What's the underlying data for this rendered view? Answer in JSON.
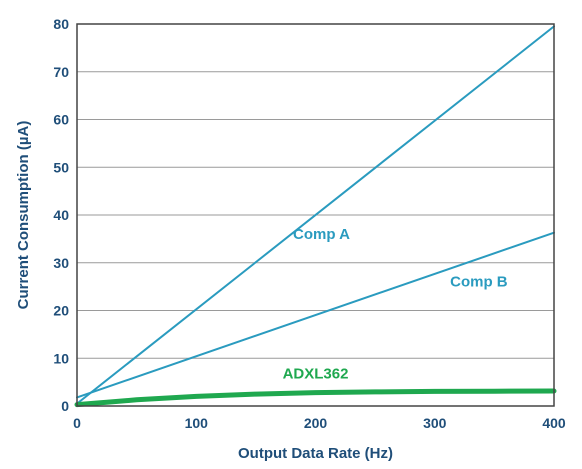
{
  "chart_data": {
    "type": "line",
    "title": "",
    "xlabel": "Output Data Rate (Hz)",
    "ylabel": "Current Consumption (µA)",
    "xlim": [
      0,
      400
    ],
    "ylim": [
      0,
      80
    ],
    "xticks": [
      0,
      100,
      200,
      300,
      400
    ],
    "yticks": [
      0,
      10,
      20,
      30,
      40,
      50,
      60,
      70,
      80
    ],
    "grid": "horizontal",
    "legend": "none",
    "series": [
      {
        "name": "Comp A",
        "color": "#2a9bbf",
        "x": [
          0,
          400
        ],
        "y": [
          0.5,
          79.5
        ],
        "label_at": [
          205,
          35
        ]
      },
      {
        "name": "Comp B",
        "color": "#2a9bbf",
        "x": [
          0,
          400
        ],
        "y": [
          1.8,
          36.3
        ],
        "label_at": [
          337,
          25
        ]
      },
      {
        "name": "ADXL362",
        "color": "#1fa84f",
        "x": [
          0,
          25,
          50,
          100,
          150,
          200,
          250,
          300,
          350,
          400
        ],
        "y": [
          0.3,
          0.8,
          1.3,
          2.0,
          2.5,
          2.8,
          2.95,
          3.05,
          3.1,
          3.15
        ],
        "label_at": [
          200,
          5.8
        ]
      }
    ]
  }
}
